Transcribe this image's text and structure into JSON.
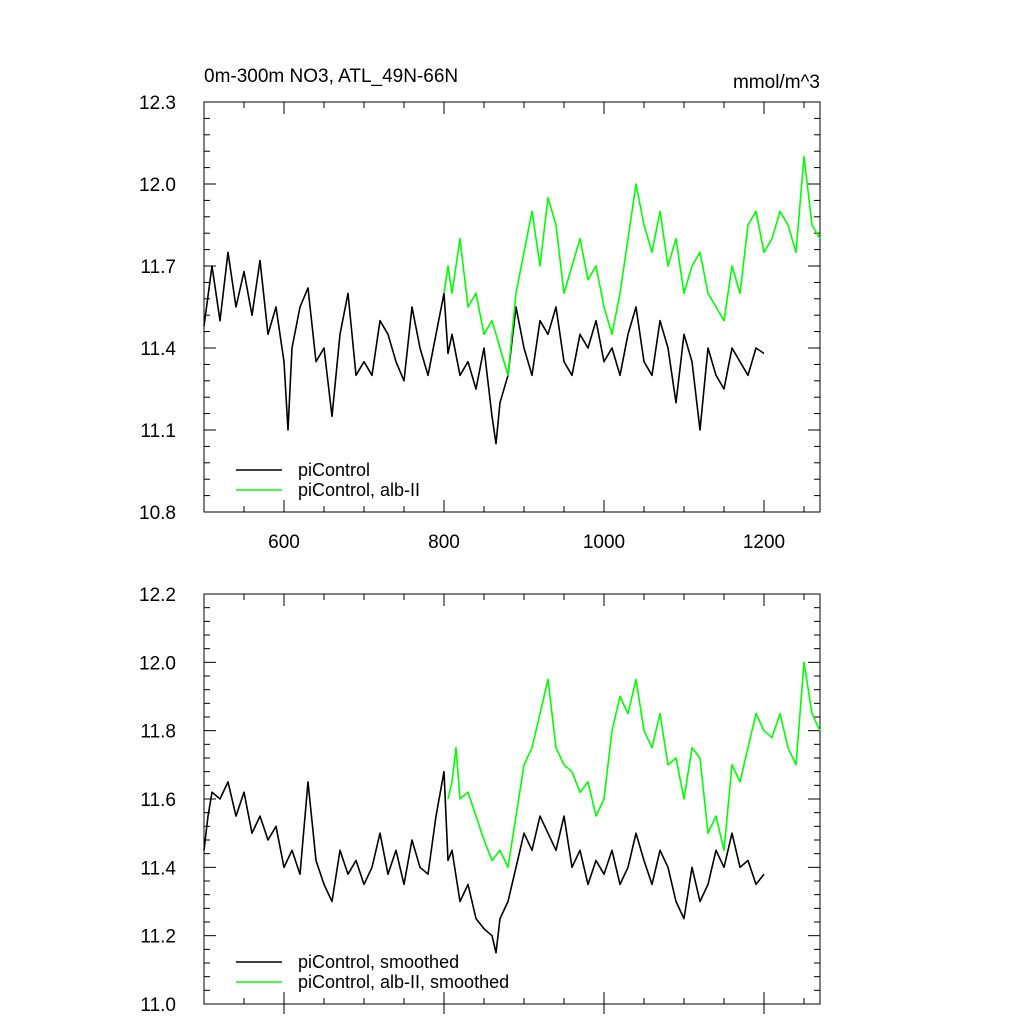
{
  "chart_data": [
    {
      "type": "line",
      "title_left": "0m-300m NO3, ATL_49N-66N",
      "title_right": "mmol/m^3",
      "xlabel": "",
      "ylabel": "",
      "xlim": [
        500,
        1270
      ],
      "ylim": [
        10.8,
        12.3
      ],
      "xticks": [
        600,
        800,
        1000,
        1200
      ],
      "xtick_labels": [
        "600",
        "800",
        "1000",
        "1200"
      ],
      "yticks": [
        10.8,
        11.1,
        11.4,
        11.7,
        12.0,
        12.3
      ],
      "ytick_labels": [
        "10.8",
        "11.1",
        "11.4",
        "11.7",
        "12.0",
        "12.3"
      ],
      "legend_position": "bottom-left",
      "series": [
        {
          "name": "piControl",
          "color": "#000000",
          "x": [
            500,
            510,
            520,
            530,
            540,
            550,
            560,
            570,
            580,
            590,
            600,
            605,
            610,
            620,
            630,
            640,
            650,
            660,
            670,
            680,
            690,
            700,
            710,
            720,
            730,
            740,
            750,
            760,
            770,
            780,
            790,
            800,
            805,
            810,
            820,
            830,
            840,
            850,
            860,
            865,
            870,
            880,
            890,
            900,
            910,
            920,
            930,
            940,
            950,
            960,
            970,
            980,
            990,
            1000,
            1010,
            1020,
            1030,
            1040,
            1050,
            1060,
            1070,
            1080,
            1090,
            1100,
            1110,
            1120,
            1130,
            1140,
            1150,
            1160,
            1170,
            1180,
            1190,
            1200
          ],
          "y": [
            11.48,
            11.7,
            11.5,
            11.75,
            11.55,
            11.68,
            11.52,
            11.72,
            11.45,
            11.55,
            11.35,
            11.1,
            11.4,
            11.55,
            11.62,
            11.35,
            11.4,
            11.15,
            11.45,
            11.6,
            11.3,
            11.35,
            11.3,
            11.5,
            11.45,
            11.35,
            11.28,
            11.55,
            11.4,
            11.3,
            11.45,
            11.6,
            11.38,
            11.45,
            11.3,
            11.35,
            11.25,
            11.4,
            11.15,
            11.05,
            11.2,
            11.3,
            11.55,
            11.4,
            11.3,
            11.5,
            11.45,
            11.55,
            11.35,
            11.3,
            11.45,
            11.4,
            11.5,
            11.35,
            11.4,
            11.3,
            11.45,
            11.55,
            11.35,
            11.3,
            11.5,
            11.4,
            11.2,
            11.45,
            11.35,
            11.1,
            11.4,
            11.3,
            11.25,
            11.4,
            11.35,
            11.3,
            11.4,
            11.38
          ]
        },
        {
          "name": "piControl, alb-II",
          "color": "#00ff00",
          "x": [
            800,
            805,
            810,
            820,
            830,
            840,
            850,
            860,
            870,
            880,
            890,
            900,
            910,
            920,
            930,
            940,
            950,
            960,
            970,
            980,
            990,
            1000,
            1010,
            1020,
            1030,
            1040,
            1050,
            1060,
            1070,
            1080,
            1090,
            1100,
            1110,
            1120,
            1130,
            1140,
            1150,
            1160,
            1170,
            1180,
            1190,
            1200,
            1210,
            1220,
            1230,
            1240,
            1250,
            1260,
            1270
          ],
          "y": [
            11.6,
            11.7,
            11.6,
            11.8,
            11.55,
            11.6,
            11.45,
            11.5,
            11.4,
            11.3,
            11.6,
            11.75,
            11.9,
            11.7,
            11.95,
            11.85,
            11.6,
            11.7,
            11.8,
            11.65,
            11.7,
            11.55,
            11.45,
            11.6,
            11.8,
            12.0,
            11.85,
            11.75,
            11.9,
            11.7,
            11.8,
            11.6,
            11.7,
            11.75,
            11.6,
            11.55,
            11.5,
            11.7,
            11.6,
            11.85,
            11.9,
            11.75,
            11.8,
            11.9,
            11.85,
            11.75,
            12.1,
            11.85,
            11.8
          ]
        }
      ]
    },
    {
      "type": "line",
      "title_left": "",
      "title_right": "",
      "xlabel": "",
      "ylabel": "",
      "xlim": [
        500,
        1270
      ],
      "ylim": [
        11.0,
        12.2
      ],
      "xticks": [
        600,
        800,
        1000,
        1200
      ],
      "xtick_labels": [],
      "yticks": [
        11.0,
        11.2,
        11.4,
        11.6,
        11.8,
        12.0,
        12.2
      ],
      "ytick_labels": [
        "11.0",
        "11.2",
        "11.4",
        "11.6",
        "11.8",
        "12.0",
        "12.2"
      ],
      "legend_position": "bottom-left",
      "series": [
        {
          "name": "piControl, smoothed",
          "color": "#000000",
          "x": [
            500,
            505,
            510,
            520,
            530,
            540,
            550,
            560,
            570,
            580,
            590,
            600,
            610,
            620,
            630,
            640,
            650,
            660,
            670,
            680,
            690,
            700,
            710,
            720,
            730,
            740,
            750,
            760,
            770,
            780,
            790,
            800,
            805,
            810,
            820,
            830,
            840,
            850,
            860,
            865,
            870,
            880,
            890,
            900,
            910,
            920,
            930,
            940,
            950,
            960,
            970,
            980,
            990,
            1000,
            1010,
            1020,
            1030,
            1040,
            1050,
            1060,
            1070,
            1080,
            1090,
            1100,
            1110,
            1120,
            1130,
            1140,
            1150,
            1160,
            1170,
            1180,
            1190,
            1200
          ],
          "y": [
            11.45,
            11.55,
            11.62,
            11.6,
            11.65,
            11.55,
            11.62,
            11.5,
            11.55,
            11.48,
            11.52,
            11.4,
            11.45,
            11.38,
            11.65,
            11.42,
            11.35,
            11.3,
            11.45,
            11.38,
            11.42,
            11.35,
            11.4,
            11.5,
            11.38,
            11.45,
            11.35,
            11.48,
            11.4,
            11.38,
            11.55,
            11.68,
            11.42,
            11.45,
            11.3,
            11.35,
            11.25,
            11.22,
            11.2,
            11.15,
            11.25,
            11.3,
            11.4,
            11.5,
            11.45,
            11.55,
            11.5,
            11.45,
            11.55,
            11.4,
            11.45,
            11.35,
            11.42,
            11.38,
            11.45,
            11.35,
            11.4,
            11.5,
            11.42,
            11.35,
            11.45,
            11.4,
            11.3,
            11.25,
            11.4,
            11.3,
            11.35,
            11.45,
            11.4,
            11.5,
            11.4,
            11.42,
            11.35,
            11.38
          ]
        },
        {
          "name": "piControl, alb-II, smoothed",
          "color": "#00ff00",
          "x": [
            805,
            810,
            815,
            820,
            830,
            840,
            850,
            860,
            870,
            880,
            890,
            900,
            910,
            920,
            930,
            940,
            950,
            960,
            970,
            980,
            990,
            1000,
            1010,
            1020,
            1030,
            1040,
            1050,
            1060,
            1070,
            1080,
            1090,
            1100,
            1110,
            1120,
            1130,
            1140,
            1150,
            1160,
            1170,
            1180,
            1190,
            1200,
            1210,
            1220,
            1230,
            1240,
            1250,
            1260,
            1270
          ],
          "y": [
            11.6,
            11.65,
            11.75,
            11.6,
            11.62,
            11.55,
            11.48,
            11.42,
            11.45,
            11.4,
            11.55,
            11.7,
            11.75,
            11.85,
            11.95,
            11.75,
            11.7,
            11.68,
            11.62,
            11.65,
            11.55,
            11.6,
            11.8,
            11.9,
            11.85,
            11.95,
            11.8,
            11.75,
            11.85,
            11.7,
            11.72,
            11.6,
            11.75,
            11.72,
            11.5,
            11.55,
            11.45,
            11.7,
            11.65,
            11.75,
            11.85,
            11.8,
            11.78,
            11.85,
            11.75,
            11.7,
            12.0,
            11.85,
            11.8
          ]
        }
      ]
    }
  ]
}
